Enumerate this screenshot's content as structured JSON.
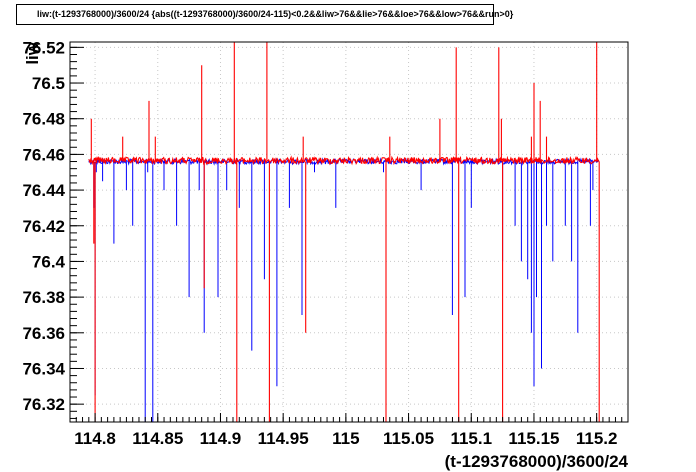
{
  "chart_data": {
    "type": "line",
    "title": "liw:(t-1293768000)/3600/24 {abs((t-1293768000)/3600/24-115)<0.2&&liw>76&&lie>76&&loe>76&&low>76&&run>0}",
    "xlabel": "(t-1293768000)/3600/24",
    "ylabel": "liw",
    "xlim": [
      114.78,
      115.225
    ],
    "ylim": [
      76.31,
      76.523
    ],
    "grid": true,
    "x_ticks": [
      "114.8",
      "114.85",
      "114.9",
      "114.95",
      "115",
      "115.05",
      "115.1",
      "115.15",
      "115.2"
    ],
    "y_ticks": [
      "76.32",
      "76.34",
      "76.36",
      "76.38",
      "76.4",
      "76.42",
      "76.44",
      "76.46",
      "76.48",
      "76.5",
      "76.52"
    ],
    "baseline": 76.456,
    "series": [
      {
        "color": "#0000ff",
        "points": [
          [
            114.795,
            76.456
          ],
          [
            114.799,
            76.43
          ],
          [
            114.8,
            76.325
          ],
          [
            114.801,
            76.45
          ],
          [
            114.806,
            76.445
          ],
          [
            114.815,
            76.41
          ],
          [
            114.825,
            76.44
          ],
          [
            114.83,
            76.42
          ],
          [
            114.84,
            76.3
          ],
          [
            114.842,
            76.45
          ],
          [
            114.846,
            76.3
          ],
          [
            114.855,
            76.44
          ],
          [
            114.865,
            76.42
          ],
          [
            114.875,
            76.38
          ],
          [
            114.883,
            76.44
          ],
          [
            114.887,
            76.36
          ],
          [
            114.898,
            76.38
          ],
          [
            114.905,
            76.44
          ],
          [
            114.915,
            76.43
          ],
          [
            114.925,
            76.35
          ],
          [
            114.935,
            76.39
          ],
          [
            114.945,
            76.33
          ],
          [
            114.955,
            76.43
          ],
          [
            114.965,
            76.37
          ],
          [
            114.975,
            76.45
          ],
          [
            114.992,
            76.43
          ],
          [
            115.03,
            76.45
          ],
          [
            115.06,
            76.44
          ],
          [
            115.085,
            76.37
          ],
          [
            115.095,
            76.38
          ],
          [
            115.1,
            76.43
          ],
          [
            115.125,
            76.4
          ],
          [
            115.135,
            76.42
          ],
          [
            115.14,
            76.4
          ],
          [
            115.145,
            76.39
          ],
          [
            115.148,
            76.36
          ],
          [
            115.15,
            76.33
          ],
          [
            115.152,
            76.38
          ],
          [
            115.156,
            76.34
          ],
          [
            115.16,
            76.42
          ],
          [
            115.165,
            76.4
          ],
          [
            115.175,
            76.42
          ],
          [
            115.18,
            76.4
          ],
          [
            115.185,
            76.36
          ],
          [
            115.195,
            76.42
          ],
          [
            115.197,
            76.44
          ]
        ]
      },
      {
        "color": "#ff0000",
        "points": [
          [
            114.797,
            76.48
          ],
          [
            114.799,
            76.41
          ],
          [
            114.8,
            76.31
          ],
          [
            114.822,
            76.47
          ],
          [
            114.843,
            76.49
          ],
          [
            114.848,
            76.47
          ],
          [
            114.885,
            76.51
          ],
          [
            114.887,
            76.385
          ],
          [
            114.911,
            76.525
          ],
          [
            114.913,
            76.31
          ],
          [
            114.937,
            76.525
          ],
          [
            114.939,
            76.31
          ],
          [
            114.966,
            76.47
          ],
          [
            114.968,
            76.36
          ],
          [
            115.032,
            76.31
          ],
          [
            115.035,
            76.47
          ],
          [
            115.075,
            76.48
          ],
          [
            115.088,
            76.52
          ],
          [
            115.09,
            76.31
          ],
          [
            115.122,
            76.52
          ],
          [
            115.124,
            76.48
          ],
          [
            115.125,
            76.31
          ],
          [
            115.148,
            76.47
          ],
          [
            115.15,
            76.5
          ],
          [
            115.155,
            76.49
          ],
          [
            115.16,
            76.47
          ],
          [
            115.2,
            76.525
          ],
          [
            115.202,
            76.31
          ]
        ]
      }
    ]
  }
}
